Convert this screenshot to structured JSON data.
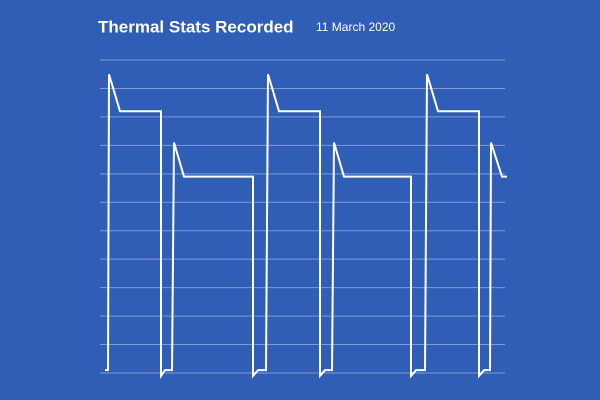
{
  "chart_data": {
    "type": "line",
    "title": "Thermal Stats Recorded",
    "subtitle": "11 March 2020",
    "x": [
      0,
      3,
      4,
      15,
      56,
      56,
      60,
      67,
      69,
      79,
      148,
      148,
      153,
      161,
      163,
      174,
      215,
      215,
      220,
      227,
      229,
      239,
      306,
      306,
      311,
      320,
      322,
      333,
      374,
      374,
      379,
      385,
      386,
      397,
      402
    ],
    "series": [
      {
        "color": "#ffffff",
        "values": [
          0.1,
          0.1,
          10.5,
          9.2,
          9.2,
          -0.1,
          0.1,
          0.1,
          8.1,
          6.9,
          6.9,
          -0.1,
          0.1,
          0.1,
          10.5,
          9.2,
          9.2,
          -0.1,
          0.1,
          0.1,
          8.1,
          6.9,
          6.9,
          -0.1,
          0.1,
          0.1,
          10.5,
          9.2,
          9.2,
          -0.1,
          0.1,
          0.1,
          8.1,
          6.9,
          6.9
        ]
      }
    ],
    "xlim": [
      -5,
      400
    ],
    "ylim": [
      0,
      11
    ],
    "yticks": [
      0,
      1,
      2,
      3,
      4,
      5,
      6,
      7,
      8,
      9,
      10,
      11
    ],
    "grid": true
  }
}
